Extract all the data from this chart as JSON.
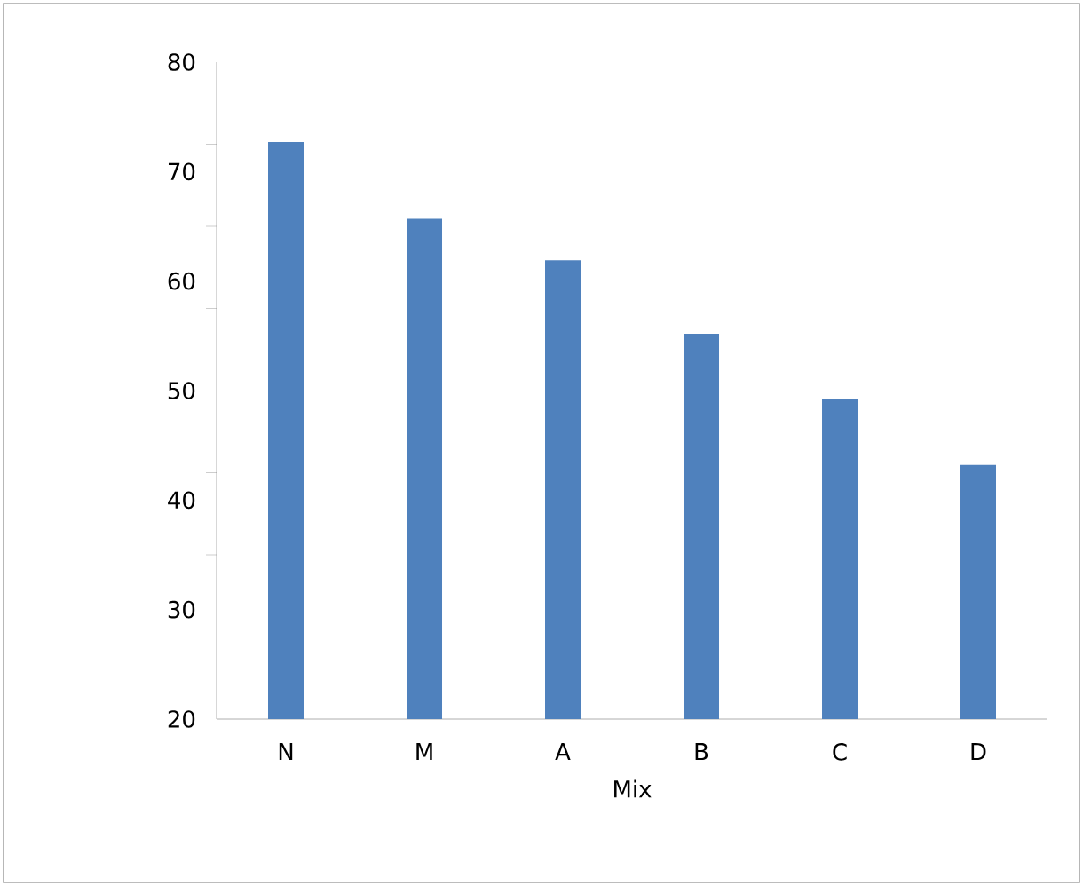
{
  "chart_data": {
    "type": "bar",
    "xlabel": "Mix",
    "categories": [
      "N",
      "M",
      "A",
      "B",
      "C",
      "D"
    ],
    "values": [
      72.7,
      65.7,
      61.9,
      55.2,
      49.2,
      43.2
    ],
    "color": "#4f81bd",
    "ylim": [
      20,
      80
    ],
    "yticks": [
      20,
      30,
      40,
      50,
      60,
      70,
      80,
      {
        "value": 27.5,
        "label": null
      },
      {
        "value": 35,
        "label": null
      },
      {
        "value": 42.5,
        "label": null
      },
      {
        "value": 57.5,
        "label": null
      },
      {
        "value": 65,
        "label": null
      },
      {
        "value": 72.5,
        "label": null
      }
    ],
    "grid": false
  }
}
